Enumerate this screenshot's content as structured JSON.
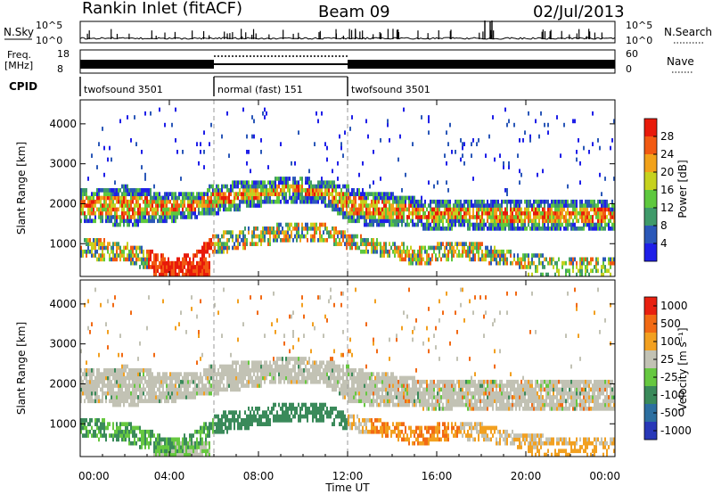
{
  "header": {
    "station": "Rankin Inlet (fitACF)",
    "beam": "Beam 09",
    "date": "02/Jul/2013"
  },
  "chart_data": [
    {
      "type": "line",
      "name": "noise-panel",
      "left_label": "N.Sky",
      "right_label": "N.Search",
      "left_ticks": [
        "10^5",
        "10^0"
      ],
      "right_ticks": [
        "10^5",
        "10^0"
      ],
      "scale": "log"
    },
    {
      "type": "line",
      "name": "freq-nave-panel",
      "left_label_line1": "Freq.",
      "left_label_line2": "[MHz]",
      "right_label": "Nave",
      "left_ticks": [
        18,
        8
      ],
      "right_ticks": [
        60,
        0
      ],
      "cpid_label": "CPID",
      "cpid_segments": [
        {
          "label": "twofsound 3501",
          "start_hour": 0,
          "end_hour": 6
        },
        {
          "label": "normal (fast) 151",
          "start_hour": 6,
          "end_hour": 12
        },
        {
          "label": "twofsound 3501",
          "start_hour": 12,
          "end_hour": 24
        }
      ]
    },
    {
      "type": "heatmap",
      "name": "power-panel",
      "ylabel": "Slant Range [km]",
      "yticks": [
        1000,
        2000,
        3000,
        4000
      ],
      "ylim": [
        180,
        4600
      ],
      "colorbar_label": "Power [dB]",
      "colorbar_ticks": [
        4,
        8,
        12,
        16,
        20,
        24,
        28
      ],
      "colorbar_colors": [
        "#1f1fe8",
        "#2b58b8",
        "#3f9a6a",
        "#5ec83e",
        "#c6d21e",
        "#f2a21a",
        "#f25a12",
        "#e81a0a"
      ],
      "scattered_from_km": 200,
      "main_band": [
        [
          0,
          1500,
          2300
        ],
        [
          1,
          1450,
          2350
        ],
        [
          2,
          1400,
          2400
        ],
        [
          3,
          1450,
          2300
        ],
        [
          4,
          1500,
          2250
        ],
        [
          5,
          1600,
          2200
        ],
        [
          6,
          1700,
          2450
        ],
        [
          7,
          1800,
          2500
        ],
        [
          8,
          1900,
          2550
        ],
        [
          9,
          2000,
          2600
        ],
        [
          10,
          2000,
          2600
        ],
        [
          11,
          1900,
          2550
        ],
        [
          12,
          1500,
          2400
        ],
        [
          13,
          1400,
          2250
        ],
        [
          14,
          1400,
          2200
        ],
        [
          15,
          1350,
          2100
        ],
        [
          16,
          1300,
          2050
        ],
        [
          17,
          1350,
          2050
        ],
        [
          18,
          1300,
          2100
        ],
        [
          19,
          1250,
          2050
        ],
        [
          20,
          1300,
          2100
        ],
        [
          21,
          1300,
          2100
        ],
        [
          22,
          1250,
          2100
        ],
        [
          23,
          1250,
          2050
        ],
        [
          24,
          1300,
          2000
        ]
      ],
      "low_band": [
        [
          0,
          600,
          1100
        ],
        [
          1,
          550,
          1050
        ],
        [
          2,
          500,
          1000
        ],
        [
          3,
          300,
          800
        ],
        [
          4,
          200,
          600
        ],
        [
          5,
          300,
          700
        ],
        [
          6,
          700,
          1200
        ],
        [
          7,
          800,
          1300
        ],
        [
          8,
          900,
          1400
        ],
        [
          9,
          1000,
          1450
        ],
        [
          10,
          1050,
          1500
        ],
        [
          11,
          1000,
          1450
        ],
        [
          12,
          800,
          1200
        ],
        [
          13,
          700,
          1100
        ],
        [
          14,
          600,
          1000
        ],
        [
          15,
          400,
          900
        ],
        [
          16,
          500,
          950
        ],
        [
          17,
          600,
          1000
        ],
        [
          18,
          500,
          950
        ],
        [
          19,
          400,
          800
        ],
        [
          20,
          350,
          700
        ],
        [
          21,
          400,
          650
        ],
        [
          22,
          400,
          650
        ],
        [
          23,
          400,
          650
        ],
        [
          24,
          400,
          600
        ]
      ]
    },
    {
      "type": "heatmap",
      "name": "velocity-panel",
      "ylabel": "Slant Range [km]",
      "yticks": [
        1000,
        2000,
        3000,
        4000
      ],
      "ylim": [
        180,
        4600
      ],
      "xlabel": "Time UT",
      "xticks": [
        "00:00",
        "04:00",
        "08:00",
        "12:00",
        "16:00",
        "20:00",
        "00:00"
      ],
      "xtick_hours": [
        0,
        4,
        8,
        12,
        16,
        20,
        24
      ],
      "xlim": [
        0,
        24
      ],
      "colorbar_label": "Velocity [m s⁻¹]",
      "colorbar_ticks": [
        "1000",
        "500",
        "100",
        "25",
        "-25",
        "-100",
        "-500",
        "-1000"
      ],
      "colorbar_colors": [
        "#2838b8",
        "#2c6fa0",
        "#3a8a5a",
        "#66c840",
        "#c2c2b4",
        "#f2a020",
        "#f26a14",
        "#e82010"
      ],
      "scattered_from_km": 200
    }
  ]
}
